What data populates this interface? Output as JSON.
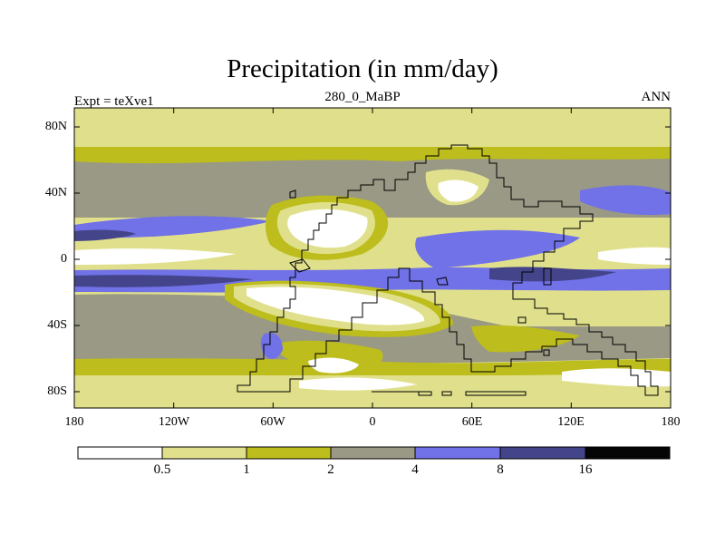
{
  "figure": {
    "title": "Precipitation (in mm/day)",
    "subtitle": "280_0_MaBP",
    "left_label": "Expt = teXve1",
    "right_label": "ANN"
  },
  "axes": {
    "y_ticks": [
      "80N",
      "40N",
      "0",
      "40S",
      "80S"
    ],
    "x_ticks": [
      "180",
      "120W",
      "60W",
      "0",
      "60E",
      "120E",
      "180"
    ]
  },
  "colorbar": {
    "levels": [
      "0.5",
      "1",
      "2",
      "4",
      "8",
      "16"
    ],
    "colors": [
      "#ffffff",
      "#e0e08c",
      "#bdbd1d",
      "#999985",
      "#7171e8",
      "#44448a",
      "#050505"
    ]
  },
  "map": {
    "colors": {
      "dry": "#ffffff",
      "light": "#e0e08c",
      "olive": "#bdbd1d",
      "gray": "#999985",
      "blue": "#7171e8",
      "navy": "#44448a"
    }
  }
}
